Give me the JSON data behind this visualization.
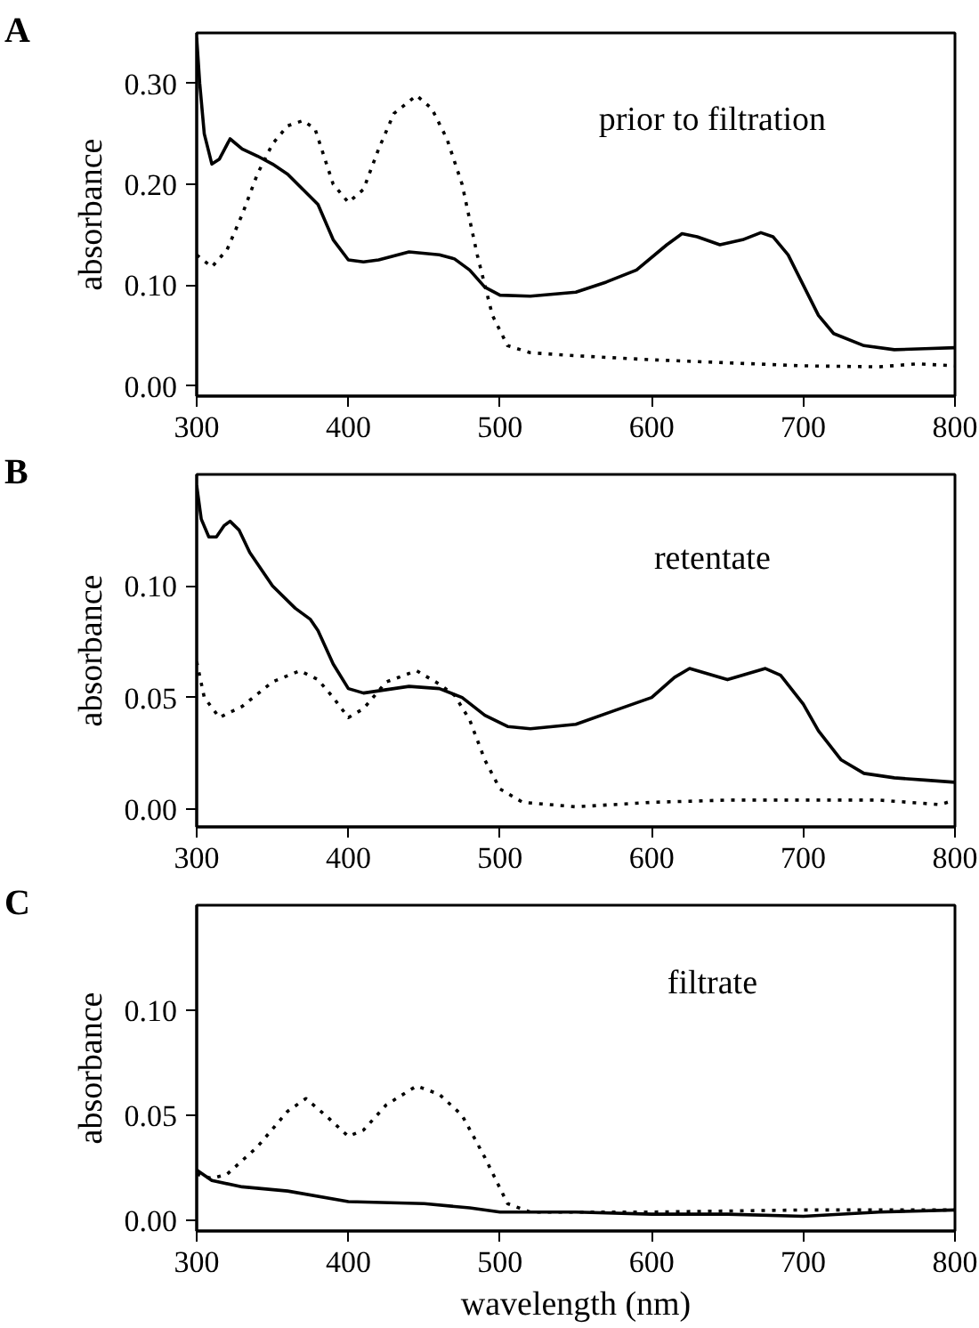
{
  "chart_data": [
    {
      "type": "line",
      "title": "A",
      "annotations": [
        "prior to filtration"
      ],
      "ylabel": "absorbance",
      "xlim": [
        300,
        800
      ],
      "xticks": [
        300,
        400,
        500,
        600,
        700,
        800
      ],
      "ylim": [
        -0.01,
        0.35
      ],
      "yticks": [
        {
          "value": 0,
          "label": "0.00"
        },
        {
          "value": 0.1,
          "label": "0.10"
        },
        {
          "value": 0.2,
          "label": "0.20"
        },
        {
          "value": 0.3,
          "label": "0.30"
        }
      ],
      "grid": false,
      "series": [
        {
          "color": "#000000",
          "line_style": "solid",
          "x": [
            300,
            302,
            305,
            310,
            315,
            322,
            330,
            340,
            350,
            360,
            370,
            380,
            390,
            400,
            410,
            420,
            440,
            460,
            470,
            480,
            490,
            500,
            520,
            550,
            570,
            590,
            610,
            620,
            630,
            645,
            660,
            672,
            680,
            690,
            700,
            710,
            720,
            740,
            760,
            780,
            800
          ],
          "values": [
            0.345,
            0.3,
            0.25,
            0.22,
            0.225,
            0.245,
            0.235,
            0.228,
            0.22,
            0.21,
            0.195,
            0.18,
            0.145,
            0.125,
            0.123,
            0.125,
            0.133,
            0.13,
            0.126,
            0.115,
            0.098,
            0.09,
            0.089,
            0.093,
            0.103,
            0.115,
            0.14,
            0.151,
            0.148,
            0.14,
            0.145,
            0.152,
            0.148,
            0.13,
            0.1,
            0.07,
            0.052,
            0.04,
            0.036,
            0.037,
            0.038
          ]
        },
        {
          "color": "#000000",
          "line_style": "dotted",
          "x": [
            300,
            310,
            320,
            330,
            340,
            350,
            360,
            370,
            378,
            390,
            400,
            410,
            420,
            430,
            445,
            455,
            465,
            475,
            485,
            495,
            505,
            520,
            550,
            600,
            650,
            700,
            750,
            775,
            800
          ],
          "values": [
            0.13,
            0.118,
            0.135,
            0.17,
            0.21,
            0.24,
            0.258,
            0.263,
            0.255,
            0.2,
            0.182,
            0.195,
            0.235,
            0.27,
            0.288,
            0.275,
            0.245,
            0.2,
            0.13,
            0.07,
            0.04,
            0.033,
            0.03,
            0.026,
            0.023,
            0.02,
            0.019,
            0.022,
            0.02
          ]
        }
      ]
    },
    {
      "type": "line",
      "title": "B",
      "annotations": [
        "retentate"
      ],
      "ylabel": "absorbance",
      "xlim": [
        300,
        800
      ],
      "xticks": [
        300,
        400,
        500,
        600,
        700,
        800
      ],
      "ylim": [
        -0.008,
        0.15
      ],
      "yticks": [
        {
          "value": 0,
          "label": "0.00"
        },
        {
          "value": 0.05,
          "label": "0.05"
        },
        {
          "value": 0.1,
          "label": "0.10"
        }
      ],
      "grid": false,
      "series": [
        {
          "color": "#000000",
          "line_style": "solid",
          "x": [
            300,
            303,
            308,
            313,
            318,
            322,
            328,
            335,
            350,
            365,
            375,
            380,
            390,
            400,
            410,
            420,
            440,
            460,
            475,
            490,
            505,
            520,
            550,
            575,
            600,
            615,
            625,
            635,
            650,
            665,
            675,
            685,
            700,
            710,
            725,
            740,
            760,
            780,
            800
          ],
          "values": [
            0.145,
            0.13,
            0.122,
            0.122,
            0.127,
            0.129,
            0.125,
            0.115,
            0.1,
            0.09,
            0.085,
            0.08,
            0.065,
            0.054,
            0.052,
            0.053,
            0.055,
            0.054,
            0.05,
            0.042,
            0.037,
            0.036,
            0.038,
            0.044,
            0.05,
            0.059,
            0.063,
            0.061,
            0.058,
            0.061,
            0.063,
            0.06,
            0.047,
            0.035,
            0.022,
            0.016,
            0.014,
            0.013,
            0.012
          ]
        },
        {
          "color": "#000000",
          "line_style": "dotted",
          "x": [
            300,
            305,
            315,
            330,
            350,
            368,
            380,
            390,
            400,
            410,
            425,
            445,
            460,
            470,
            480,
            490,
            500,
            515,
            550,
            600,
            650,
            700,
            750,
            790,
            800
          ],
          "values": [
            0.066,
            0.05,
            0.041,
            0.046,
            0.057,
            0.062,
            0.058,
            0.05,
            0.041,
            0.045,
            0.057,
            0.062,
            0.056,
            0.051,
            0.04,
            0.022,
            0.009,
            0.003,
            0.001,
            0.003,
            0.004,
            0.004,
            0.004,
            0.002,
            0.004
          ]
        }
      ]
    },
    {
      "type": "line",
      "title": "C",
      "annotations": [
        "filtrate"
      ],
      "xlabel": "wavelength (nm)",
      "ylabel": "absorbance",
      "xlim": [
        300,
        800
      ],
      "xticks": [
        300,
        400,
        500,
        600,
        700,
        800
      ],
      "ylim": [
        -0.005,
        0.15
      ],
      "yticks": [
        {
          "value": 0,
          "label": "0.00"
        },
        {
          "value": 0.05,
          "label": "0.05"
        },
        {
          "value": 0.1,
          "label": "0.10"
        }
      ],
      "grid": false,
      "series": [
        {
          "color": "#000000",
          "line_style": "solid",
          "x": [
            300,
            310,
            330,
            360,
            400,
            450,
            480,
            500,
            550,
            600,
            650,
            700,
            750,
            800
          ],
          "values": [
            0.024,
            0.019,
            0.016,
            0.014,
            0.009,
            0.008,
            0.006,
            0.004,
            0.004,
            0.003,
            0.003,
            0.002,
            0.004,
            0.005
          ]
        },
        {
          "color": "#000000",
          "line_style": "dotted",
          "x": [
            300,
            310,
            320,
            340,
            360,
            372,
            385,
            400,
            410,
            425,
            445,
            460,
            475,
            490,
            505,
            520,
            600,
            700,
            750,
            800
          ],
          "values": [
            0.022,
            0.02,
            0.022,
            0.035,
            0.052,
            0.058,
            0.05,
            0.04,
            0.043,
            0.055,
            0.064,
            0.06,
            0.05,
            0.03,
            0.008,
            0.004,
            0.004,
            0.005,
            0.005,
            0.005
          ]
        }
      ]
    }
  ]
}
